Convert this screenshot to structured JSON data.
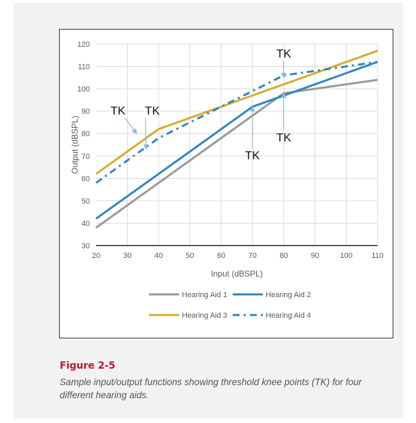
{
  "figure": {
    "title": "Figure 2-5",
    "caption": "Sample input/output functions showing threshold knee points (TK) for four different hearing aids."
  },
  "chart_data": {
    "type": "line",
    "xlabel": "Input (dBSPL)",
    "ylabel": "Output (dBSPL)",
    "xlim": [
      20,
      110
    ],
    "ylim": [
      30,
      120
    ],
    "xticks": [
      20,
      30,
      40,
      50,
      60,
      70,
      80,
      90,
      100,
      110
    ],
    "yticks": [
      30,
      40,
      50,
      60,
      70,
      80,
      90,
      100,
      110,
      120
    ],
    "grid": true,
    "legend_position": "bottom",
    "series": [
      {
        "name": "Hearing Aid 1",
        "color": "#999999",
        "style": "solid",
        "x": [
          20,
          80,
          110
        ],
        "y": [
          38,
          98,
          104
        ]
      },
      {
        "name": "Hearing Aid 2",
        "color": "#2e86c1",
        "style": "solid",
        "x": [
          20,
          70,
          110
        ],
        "y": [
          42,
          92,
          112
        ]
      },
      {
        "name": "Hearing Aid 3",
        "color": "#d4ac2c",
        "style": "solid",
        "x": [
          20,
          40,
          110
        ],
        "y": [
          62,
          82,
          117
        ]
      },
      {
        "name": "Hearing Aid 4",
        "color": "#2e86c1",
        "style": "dashdot",
        "x": [
          20,
          40,
          80,
          110
        ],
        "y": [
          58,
          78,
          106,
          112
        ]
      }
    ],
    "annotations": [
      {
        "text": "TK",
        "x": 27,
        "y": 88.5,
        "arrow_to": [
          33,
          80
        ]
      },
      {
        "text": "TK",
        "x": 38,
        "y": 88.5,
        "arrow_to": [
          36,
          73
        ]
      },
      {
        "text": "TK",
        "x": 80,
        "y": 114,
        "arrow_to": [
          80,
          105
        ]
      },
      {
        "text": "TK",
        "x": 80,
        "y": 76.5,
        "arrow_to": [
          80,
          98
        ]
      },
      {
        "text": "TK",
        "x": 70,
        "y": 68.5,
        "arrow_to": [
          70,
          92
        ]
      }
    ]
  }
}
